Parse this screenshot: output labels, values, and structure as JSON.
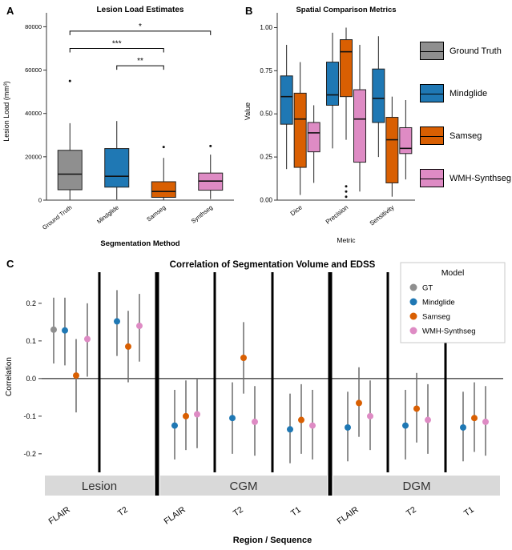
{
  "figure": {
    "panel_labels": {
      "a": "A",
      "b": "B",
      "c": "C"
    }
  },
  "colors": {
    "ground_truth": "#8f8f8f",
    "mindglide": "#1f78b4",
    "samseg": "#d95f02",
    "wmh_synthseg": "#de8bc4",
    "errorbar": "#6b6b6b",
    "strip_bg": "#d9d9d9"
  },
  "legend_b": {
    "items": [
      {
        "label": "Ground Truth",
        "color": "#8f8f8f"
      },
      {
        "label": "Mindglide",
        "color": "#1f78b4"
      },
      {
        "label": "Samseg",
        "color": "#d95f02"
      },
      {
        "label": "WMH-Synthseg",
        "color": "#de8bc4"
      }
    ]
  },
  "chart_data": [
    {
      "id": "panelA",
      "type": "box",
      "title": "Lesion Load Estimates",
      "xlabel": "Segmentation Method",
      "ylabel": "Lesion Load (mm³)",
      "ylim": [
        0,
        82000
      ],
      "yticks": [
        0,
        20000,
        40000,
        60000,
        80000
      ],
      "ytick_labels": [
        "0",
        "20000",
        "40000",
        "60000",
        "80000"
      ],
      "categories": [
        "Ground Truth",
        "Mindglide",
        "Samseg",
        "Synthseg"
      ],
      "boxes": [
        {
          "label": "Ground Truth",
          "color": "#8f8f8f",
          "low": 200,
          "q1": 4800,
          "median": 12000,
          "q3": 23000,
          "high": 35500,
          "outliers": [
            55000
          ]
        },
        {
          "label": "Mindglide",
          "color": "#1f78b4",
          "low": 300,
          "q1": 6000,
          "median": 11000,
          "q3": 23800,
          "high": 36500,
          "outliers": []
        },
        {
          "label": "Samseg",
          "color": "#d95f02",
          "low": 150,
          "q1": 1300,
          "median": 4000,
          "q3": 8500,
          "high": 19500,
          "outliers": [
            24500
          ]
        },
        {
          "label": "Synthseg",
          "color": "#de8bc4",
          "low": 500,
          "q1": 4600,
          "median": 8800,
          "q3": 12500,
          "high": 21000,
          "outliers": [
            25000
          ]
        }
      ],
      "significance": [
        {
          "from": 0,
          "to": 3,
          "label": "*",
          "y": 78000
        },
        {
          "from": 0,
          "to": 2,
          "label": "***",
          "y": 70000
        },
        {
          "from": 1,
          "to": 2,
          "label": "**",
          "y": 62000
        }
      ]
    },
    {
      "id": "panelB",
      "type": "box",
      "title": "Spatial Comparison Metrics",
      "xlabel": "Metric",
      "ylabel": "Value",
      "ylim": [
        0,
        1.03
      ],
      "yticks": [
        0,
        0.25,
        0.5,
        0.75,
        1.0
      ],
      "ytick_labels": [
        "0.00",
        "0.25",
        "0.50",
        "0.75",
        "1.00"
      ],
      "groups": [
        "Dice",
        "Precision",
        "Sensitivity"
      ],
      "series": [
        "Mindglide",
        "Samseg",
        "WMH-Synthseg"
      ],
      "series_colors": [
        "#1f78b4",
        "#d95f02",
        "#de8bc4"
      ],
      "boxes": [
        {
          "group": "Dice",
          "series": "Mindglide",
          "low": 0.18,
          "q1": 0.44,
          "median": 0.6,
          "q3": 0.72,
          "high": 0.9,
          "outliers": []
        },
        {
          "group": "Dice",
          "series": "Samseg",
          "low": 0.03,
          "q1": 0.19,
          "median": 0.47,
          "q3": 0.62,
          "high": 0.8,
          "outliers": []
        },
        {
          "group": "Dice",
          "series": "WMH-Synthseg",
          "low": 0.1,
          "q1": 0.28,
          "median": 0.39,
          "q3": 0.45,
          "high": 0.55,
          "outliers": []
        },
        {
          "group": "Precision",
          "series": "Mindglide",
          "low": 0.3,
          "q1": 0.55,
          "median": 0.61,
          "q3": 0.8,
          "high": 0.97,
          "outliers": []
        },
        {
          "group": "Precision",
          "series": "Samseg",
          "low": 0.35,
          "q1": 0.6,
          "median": 0.86,
          "q3": 0.93,
          "high": 1.0,
          "outliers": [
            0.08,
            0.05,
            0.02
          ]
        },
        {
          "group": "Precision",
          "series": "WMH-Synthseg",
          "low": 0.05,
          "q1": 0.22,
          "median": 0.47,
          "q3": 0.64,
          "high": 0.9,
          "outliers": []
        },
        {
          "group": "Sensitivity",
          "series": "Mindglide",
          "low": 0.25,
          "q1": 0.45,
          "median": 0.59,
          "q3": 0.76,
          "high": 0.95,
          "outliers": []
        },
        {
          "group": "Sensitivity",
          "series": "Samseg",
          "low": 0.02,
          "q1": 0.1,
          "median": 0.35,
          "q3": 0.48,
          "high": 0.6,
          "outliers": []
        },
        {
          "group": "Sensitivity",
          "series": "WMH-Synthseg",
          "low": 0.12,
          "q1": 0.27,
          "median": 0.3,
          "q3": 0.42,
          "high": 0.58,
          "outliers": []
        }
      ]
    },
    {
      "id": "panelC",
      "type": "point-errorbar",
      "title": "Correlation of Segmentation Volume and EDSS",
      "xlabel": "Region / Sequence",
      "ylabel": "Correlation",
      "ylim": [
        -0.245,
        0.255
      ],
      "yticks": [
        0.2,
        0.1,
        0.0,
        -0.1,
        -0.2
      ],
      "ytick_labels": [
        "0.2",
        "0.1",
        "0.0",
        "-0.1",
        "-0.2"
      ],
      "model_colors": {
        "GT": "#8f8f8f",
        "Mindglide": "#1f78b4",
        "Samseg": "#d95f02",
        "WMH-Synthseg": "#de8bc4"
      },
      "legend": {
        "title": "Model",
        "items": [
          {
            "label": "GT",
            "color": "#8f8f8f"
          },
          {
            "label": "Mindglide",
            "color": "#1f78b4"
          },
          {
            "label": "Samseg",
            "color": "#d95f02"
          },
          {
            "label": "WMH-Synthseg",
            "color": "#de8bc4"
          }
        ]
      },
      "regions": [
        {
          "label": "Lesion",
          "sequences": [
            "FLAIR",
            "T2"
          ]
        },
        {
          "label": "CGM",
          "sequences": [
            "FLAIR",
            "T2",
            "T1"
          ]
        },
        {
          "label": "DGM",
          "sequences": [
            "FLAIR",
            "T2",
            "T1"
          ]
        }
      ],
      "points": [
        {
          "region": "Lesion",
          "sequence": "FLAIR",
          "model": "GT",
          "value": 0.13,
          "lo": 0.04,
          "hi": 0.215
        },
        {
          "region": "Lesion",
          "sequence": "FLAIR",
          "model": "Mindglide",
          "value": 0.128,
          "lo": 0.035,
          "hi": 0.215
        },
        {
          "region": "Lesion",
          "sequence": "FLAIR",
          "model": "Samseg",
          "value": 0.008,
          "lo": -0.09,
          "hi": 0.105
        },
        {
          "region": "Lesion",
          "sequence": "FLAIR",
          "model": "WMH-Synthseg",
          "value": 0.105,
          "lo": 0.005,
          "hi": 0.2
        },
        {
          "region": "Lesion",
          "sequence": "T2",
          "model": "Mindglide",
          "value": 0.152,
          "lo": 0.06,
          "hi": 0.235
        },
        {
          "region": "Lesion",
          "sequence": "T2",
          "model": "Samseg",
          "value": 0.085,
          "lo": -0.01,
          "hi": 0.18
        },
        {
          "region": "Lesion",
          "sequence": "T2",
          "model": "WMH-Synthseg",
          "value": 0.14,
          "lo": 0.045,
          "hi": 0.225
        },
        {
          "region": "CGM",
          "sequence": "FLAIR",
          "model": "Mindglide",
          "value": -0.125,
          "lo": -0.215,
          "hi": -0.03
        },
        {
          "region": "CGM",
          "sequence": "FLAIR",
          "model": "Samseg",
          "value": -0.1,
          "lo": -0.19,
          "hi": -0.005
        },
        {
          "region": "CGM",
          "sequence": "FLAIR",
          "model": "WMH-Synthseg",
          "value": -0.095,
          "lo": -0.185,
          "hi": 0.0
        },
        {
          "region": "CGM",
          "sequence": "T2",
          "model": "Mindglide",
          "value": -0.105,
          "lo": -0.2,
          "hi": -0.01
        },
        {
          "region": "CGM",
          "sequence": "T2",
          "model": "Samseg",
          "value": 0.055,
          "lo": -0.04,
          "hi": 0.15
        },
        {
          "region": "CGM",
          "sequence": "T2",
          "model": "WMH-Synthseg",
          "value": -0.115,
          "lo": -0.205,
          "hi": -0.02
        },
        {
          "region": "CGM",
          "sequence": "T1",
          "model": "Mindglide",
          "value": -0.135,
          "lo": -0.225,
          "hi": -0.04
        },
        {
          "region": "CGM",
          "sequence": "T1",
          "model": "Samseg",
          "value": -0.11,
          "lo": -0.2,
          "hi": -0.015
        },
        {
          "region": "CGM",
          "sequence": "T1",
          "model": "WMH-Synthseg",
          "value": -0.125,
          "lo": -0.215,
          "hi": -0.03
        },
        {
          "region": "DGM",
          "sequence": "FLAIR",
          "model": "Mindglide",
          "value": -0.13,
          "lo": -0.22,
          "hi": -0.035
        },
        {
          "region": "DGM",
          "sequence": "FLAIR",
          "model": "Samseg",
          "value": -0.065,
          "lo": -0.155,
          "hi": 0.03
        },
        {
          "region": "DGM",
          "sequence": "FLAIR",
          "model": "WMH-Synthseg",
          "value": -0.1,
          "lo": -0.19,
          "hi": -0.005
        },
        {
          "region": "DGM",
          "sequence": "T2",
          "model": "Mindglide",
          "value": -0.125,
          "lo": -0.215,
          "hi": -0.03
        },
        {
          "region": "DGM",
          "sequence": "T2",
          "model": "Samseg",
          "value": -0.08,
          "lo": -0.17,
          "hi": 0.015
        },
        {
          "region": "DGM",
          "sequence": "T2",
          "model": "WMH-Synthseg",
          "value": -0.11,
          "lo": -0.2,
          "hi": -0.015
        },
        {
          "region": "DGM",
          "sequence": "T1",
          "model": "Mindglide",
          "value": -0.13,
          "lo": -0.22,
          "hi": -0.035
        },
        {
          "region": "DGM",
          "sequence": "T1",
          "model": "Samseg",
          "value": -0.105,
          "lo": -0.195,
          "hi": -0.01
        },
        {
          "region": "DGM",
          "sequence": "T1",
          "model": "WMH-Synthseg",
          "value": -0.115,
          "lo": -0.205,
          "hi": -0.02
        }
      ]
    }
  ]
}
